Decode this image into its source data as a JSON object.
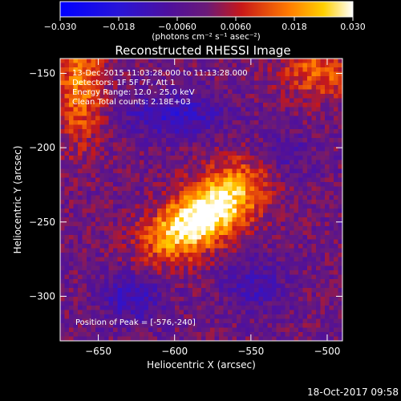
{
  "chart_data": {
    "type": "heatmap",
    "title": "Reconstructed RHESSI Image",
    "xlabel": "Heliocentric X (arcsec)",
    "ylabel": "Heliocentric Y (arcsec)",
    "xlim": [
      -675,
      -490
    ],
    "ylim": [
      -330,
      -140
    ],
    "xticks": [
      -650,
      -600,
      -550,
      -500
    ],
    "yticks": [
      -300,
      -250,
      -200,
      -150
    ],
    "xtick_labels": [
      "−650",
      "−600",
      "−550",
      "−500"
    ],
    "ytick_labels": [
      "−300",
      "−250",
      "−200",
      "−150"
    ],
    "colorbar": {
      "min": -0.03,
      "max": 0.03,
      "ticks": [
        -0.03,
        -0.018,
        -0.006,
        0.006,
        0.018,
        0.03
      ],
      "tick_labels": [
        "−0.030",
        "−0.018",
        "−0.0060",
        "0.0060",
        "0.018",
        "0.030"
      ],
      "units_label": "(photons cm⁻² s⁻¹ asec⁻²)",
      "colormap": "blue-purple-red-yellow-white"
    },
    "peak": {
      "x": -576,
      "y": -240
    },
    "sources": [
      {
        "x": -573,
        "y": -240,
        "sx": 26,
        "sy": 14,
        "angle_deg": 40,
        "amp": 0.032
      },
      {
        "x": -600,
        "y": -255,
        "sx": 20,
        "sy": 12,
        "angle_deg": 35,
        "amp": 0.014
      },
      {
        "x": -662,
        "y": -158,
        "sx": 12,
        "sy": 28,
        "angle_deg": 0,
        "amp": 0.018
      },
      {
        "x": -505,
        "y": -148,
        "sx": 18,
        "sy": 14,
        "angle_deg": 0,
        "amp": 0.015
      },
      {
        "x": -600,
        "y": -178,
        "sx": 22,
        "sy": 10,
        "angle_deg": 0,
        "amp": -0.013
      },
      {
        "x": -628,
        "y": -300,
        "sx": 14,
        "sy": 12,
        "angle_deg": 0,
        "amp": -0.012
      },
      {
        "x": -530,
        "y": -205,
        "sx": 14,
        "sy": 12,
        "angle_deg": 0,
        "amp": -0.008
      },
      {
        "x": -548,
        "y": -292,
        "sx": 14,
        "sy": 12,
        "angle_deg": 0,
        "amp": -0.009
      }
    ]
  },
  "annotations": {
    "time_range": "13-Dec-2015 11:03:28.000 to 11:13:28.000",
    "detectors": "Detectors: 1F 5F 7F, Att 1",
    "energy_range": "Energy Range: 12.0 - 25.0 keV",
    "clean_counts": "Clean    Total counts: 2.18E+03",
    "peak_position": "Position of Peak = [-576,-240]"
  },
  "footer": {
    "timestamp": "18-Oct-2017 09:58"
  }
}
